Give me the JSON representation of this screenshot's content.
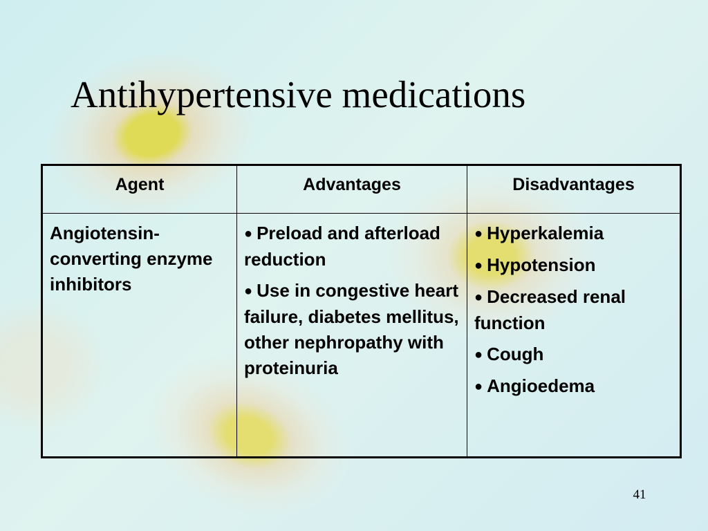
{
  "slide": {
    "title": "Antihypertensive medications",
    "page_number": "41"
  },
  "table": {
    "headers": [
      "Agent",
      "Advantages",
      "Disadvantages"
    ],
    "row": {
      "agent": "Angiotensin-converting enzyme inhibitors",
      "advantages": [
        "Preload and afterload reduction",
        "Use in congestive heart failure, diabetes mellitus, other nephropathy with proteinuria"
      ],
      "disadvantages": [
        "Hyperkalemia",
        "Hypotension",
        "Decreased renal function",
        "Cough",
        "Angioedema"
      ]
    }
  },
  "bullet_glyph": "●"
}
